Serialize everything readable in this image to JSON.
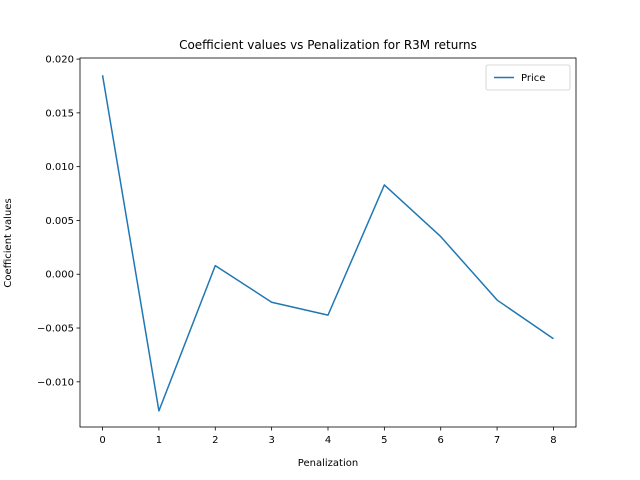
{
  "chart_data": {
    "type": "line",
    "title": "Coefficient values vs Penalization for R3M returns",
    "xlabel": "Penalization",
    "ylabel": "Coefficient values",
    "x": [
      0,
      1,
      2,
      3,
      4,
      5,
      6,
      7,
      8
    ],
    "series": [
      {
        "name": "Price",
        "color": "#1f77b4",
        "values": [
          0.0185,
          -0.0127,
          0.0008,
          -0.0026,
          -0.0038,
          0.0083,
          0.0035,
          -0.0024,
          -0.006
        ]
      }
    ],
    "xlim": [
      -0.4,
      8.4
    ],
    "ylim": [
      -0.0142,
      0.0201
    ],
    "xticks": [
      0,
      1,
      2,
      3,
      4,
      5,
      6,
      7,
      8
    ],
    "yticks": [
      0.02,
      0.015,
      0.01,
      0.005,
      0.0,
      -0.005,
      -0.01
    ],
    "ytick_labels": [
      "0.020",
      "0.015",
      "0.010",
      "0.005",
      "0.000",
      "−0.005",
      "−0.010"
    ],
    "grid": false,
    "legend_position": "top-right"
  }
}
